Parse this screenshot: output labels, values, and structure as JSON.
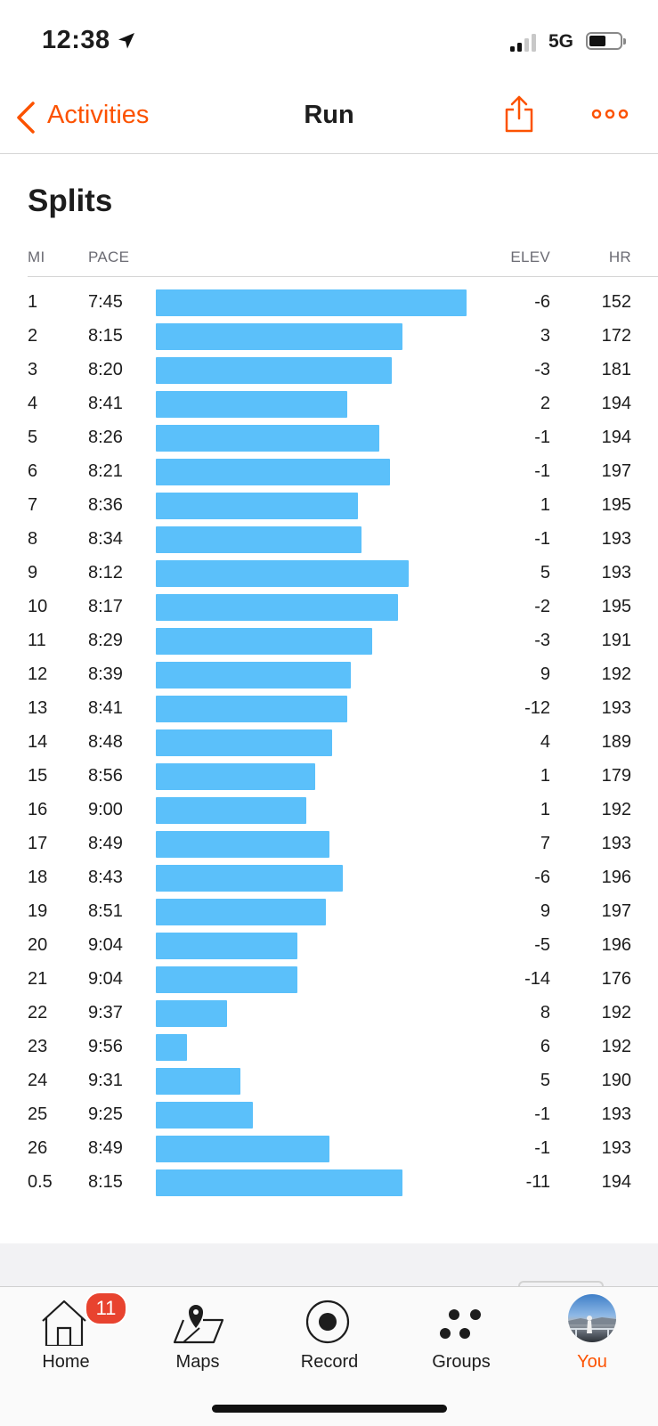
{
  "status_bar": {
    "time": "12:38",
    "network": "5G"
  },
  "nav": {
    "back_label": "Activities",
    "title": "Run"
  },
  "splits": {
    "title": "Splits",
    "columns": {
      "mi": "MI",
      "pace": "PACE",
      "elev": "ELEV",
      "hr": "HR"
    },
    "rows": [
      {
        "mi": "1",
        "pace": "7:45",
        "elev": "-6",
        "hr": "152"
      },
      {
        "mi": "2",
        "pace": "8:15",
        "elev": "3",
        "hr": "172"
      },
      {
        "mi": "3",
        "pace": "8:20",
        "elev": "-3",
        "hr": "181"
      },
      {
        "mi": "4",
        "pace": "8:41",
        "elev": "2",
        "hr": "194"
      },
      {
        "mi": "5",
        "pace": "8:26",
        "elev": "-1",
        "hr": "194"
      },
      {
        "mi": "6",
        "pace": "8:21",
        "elev": "-1",
        "hr": "197"
      },
      {
        "mi": "7",
        "pace": "8:36",
        "elev": "1",
        "hr": "195"
      },
      {
        "mi": "8",
        "pace": "8:34",
        "elev": "-1",
        "hr": "193"
      },
      {
        "mi": "9",
        "pace": "8:12",
        "elev": "5",
        "hr": "193"
      },
      {
        "mi": "10",
        "pace": "8:17",
        "elev": "-2",
        "hr": "195"
      },
      {
        "mi": "11",
        "pace": "8:29",
        "elev": "-3",
        "hr": "191"
      },
      {
        "mi": "12",
        "pace": "8:39",
        "elev": "9",
        "hr": "192"
      },
      {
        "mi": "13",
        "pace": "8:41",
        "elev": "-12",
        "hr": "193"
      },
      {
        "mi": "14",
        "pace": "8:48",
        "elev": "4",
        "hr": "189"
      },
      {
        "mi": "15",
        "pace": "8:56",
        "elev": "1",
        "hr": "179"
      },
      {
        "mi": "16",
        "pace": "9:00",
        "elev": "1",
        "hr": "192"
      },
      {
        "mi": "17",
        "pace": "8:49",
        "elev": "7",
        "hr": "193"
      },
      {
        "mi": "18",
        "pace": "8:43",
        "elev": "-6",
        "hr": "196"
      },
      {
        "mi": "19",
        "pace": "8:51",
        "elev": "9",
        "hr": "197"
      },
      {
        "mi": "20",
        "pace": "9:04",
        "elev": "-5",
        "hr": "196"
      },
      {
        "mi": "21",
        "pace": "9:04",
        "elev": "-14",
        "hr": "176"
      },
      {
        "mi": "22",
        "pace": "9:37",
        "elev": "8",
        "hr": "192"
      },
      {
        "mi": "23",
        "pace": "9:56",
        "elev": "6",
        "hr": "192"
      },
      {
        "mi": "24",
        "pace": "9:31",
        "elev": "5",
        "hr": "190"
      },
      {
        "mi": "25",
        "pace": "9:25",
        "elev": "-1",
        "hr": "193"
      },
      {
        "mi": "26",
        "pace": "8:49",
        "elev": "-1",
        "hr": "193"
      },
      {
        "mi": "0.5",
        "pace": "8:15",
        "elev": "-11",
        "hr": "194"
      }
    ]
  },
  "tab_bar": {
    "tabs": [
      {
        "label": "Home",
        "icon": "home-icon",
        "badge": "11",
        "active": false
      },
      {
        "label": "Maps",
        "icon": "map-icon",
        "active": false
      },
      {
        "label": "Record",
        "icon": "record-icon",
        "active": false
      },
      {
        "label": "Groups",
        "icon": "groups-icon",
        "active": false
      },
      {
        "label": "You",
        "icon": "avatar",
        "active": true
      }
    ]
  },
  "colors": {
    "accent": "#fc5200",
    "bar": "#5bc0fa",
    "badge": "#e8432f"
  }
}
